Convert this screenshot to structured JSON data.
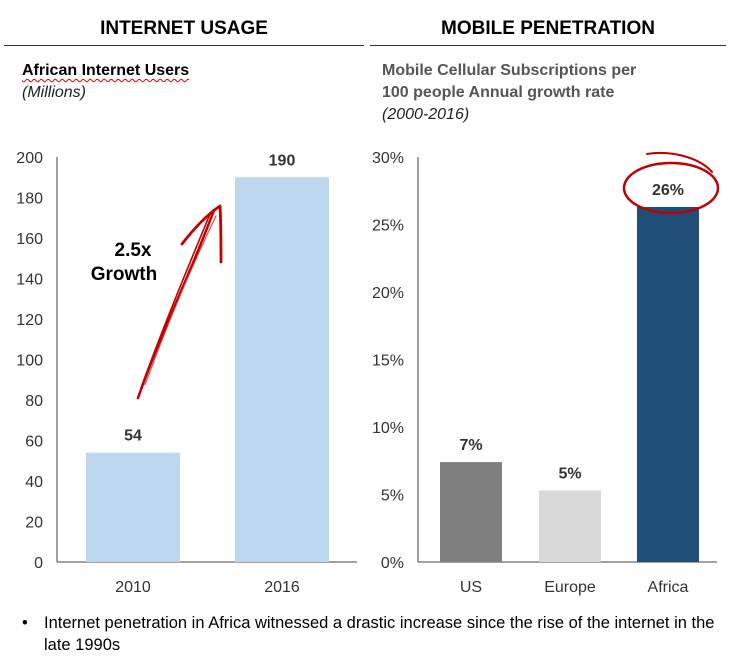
{
  "left_panel": {
    "heading": "INTERNET USAGE",
    "subtitle_bold": "African Internet Users",
    "subtitle_italic": "(Millions)",
    "annotation_line1": "2.5x",
    "annotation_line2": "Growth"
  },
  "right_panel": {
    "heading": "MOBILE PENETRATION",
    "subtitle_line1": "Mobile Cellular Subscriptions per",
    "subtitle_line2": "100 people Annual growth rate",
    "subtitle_italic": "(2000-2016)"
  },
  "footer": {
    "bullet_text": "Internet penetration in Africa witnessed a drastic increase since the rise of the internet in the late 1990s"
  },
  "chart_data": [
    {
      "type": "bar",
      "title": "African Internet Users (Millions)",
      "categories": [
        "2010",
        "2016"
      ],
      "values": [
        54,
        190
      ],
      "value_labels": [
        "54",
        "190"
      ],
      "yticks": [
        "0",
        "20",
        "40",
        "60",
        "80",
        "100",
        "120",
        "140",
        "160",
        "180",
        "200"
      ],
      "ylim": [
        0,
        200
      ],
      "colors": [
        "#bdd7ee",
        "#bdd7ee"
      ],
      "grid": false
    },
    {
      "type": "bar",
      "title": "Mobile Cellular Subscriptions per 100 people Annual growth rate (2000-2016)",
      "categories": [
        "US",
        "Europe",
        "Africa"
      ],
      "values": [
        7.4,
        5.3,
        26.3
      ],
      "value_labels": [
        "7%",
        "5%",
        "26%"
      ],
      "yticks": [
        "0%",
        "5%",
        "10%",
        "15%",
        "20%",
        "25%",
        "30%"
      ],
      "ylim": [
        0,
        30
      ],
      "colors": [
        "#7f7f7f",
        "#d9d9d9",
        "#1f4e79"
      ],
      "highlight": "Africa",
      "grid": false
    }
  ]
}
